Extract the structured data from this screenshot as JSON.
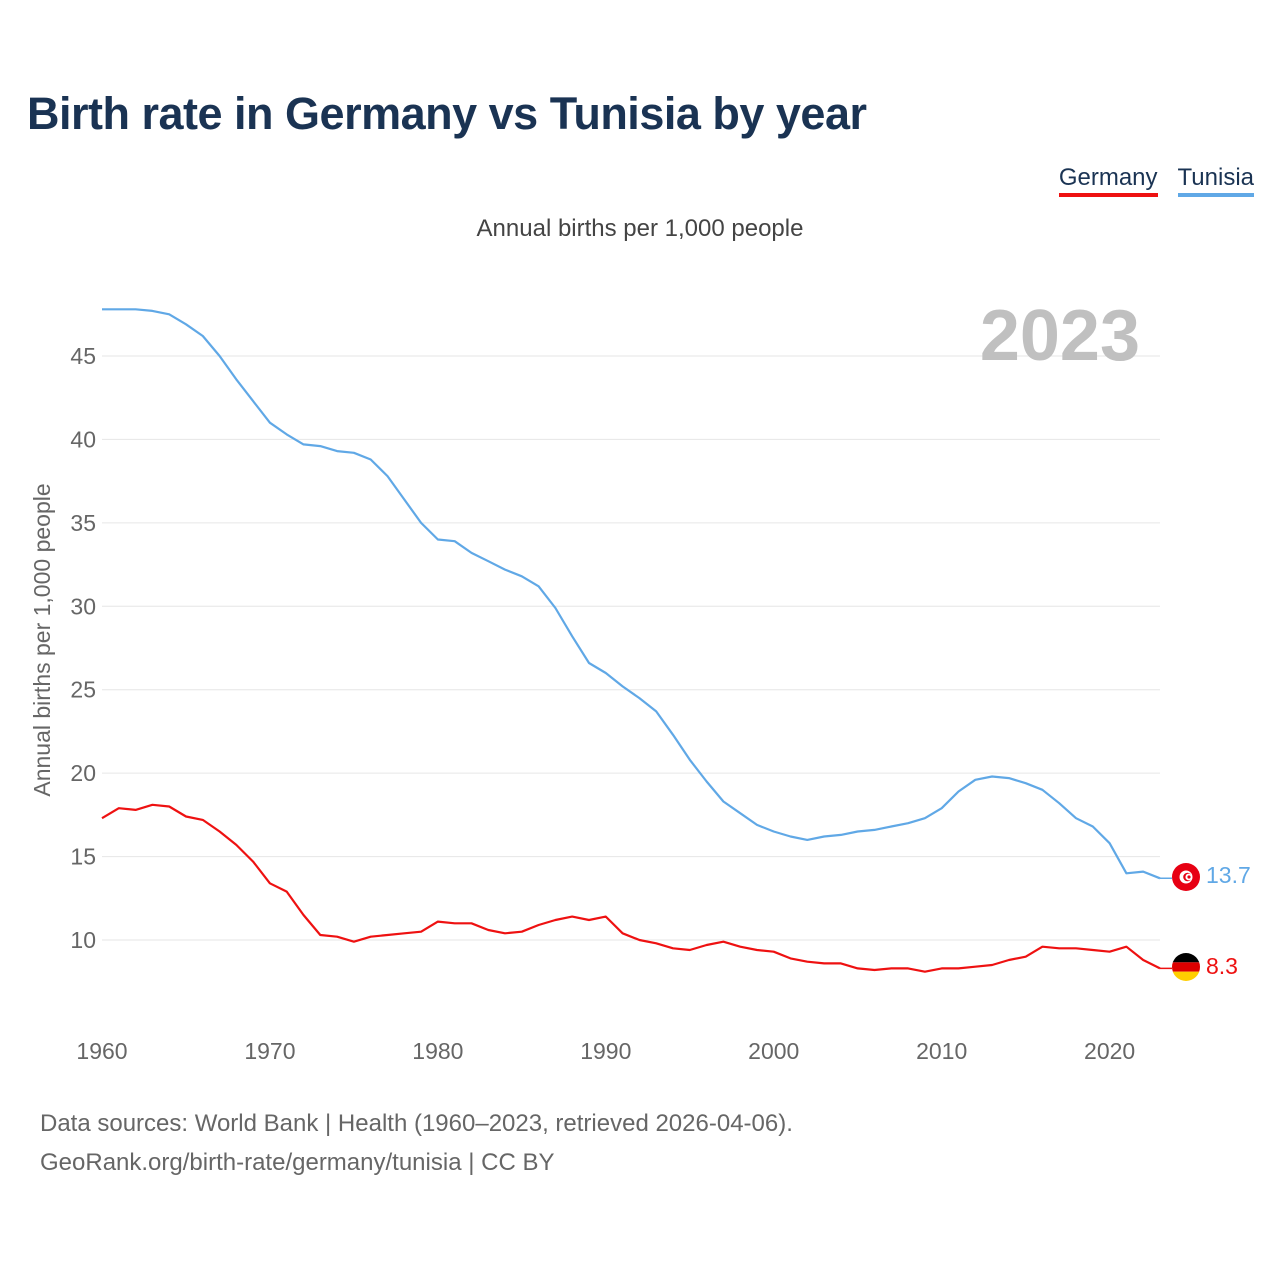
{
  "title": "Birth rate in Germany vs Tunisia by year",
  "subtitle": "Annual births per 1,000 people",
  "legend": [
    {
      "name": "Germany",
      "color": "#ee1111"
    },
    {
      "name": "Tunisia",
      "color": "#60a8e6"
    }
  ],
  "year_label": "2023",
  "footer": {
    "line1": "Data sources: World Bank | Health (1960–2023, retrieved 2026-04-06).",
    "line2": "GeoRank.org/birth-rate/germany/tunisia | CC BY"
  },
  "colors": {
    "title": "#1a3353",
    "germany": "#ee1111",
    "tunisia": "#60a8e6",
    "year": "#c0c0c0",
    "grid": "#e6e6e6"
  },
  "chart_data": {
    "type": "line",
    "title": "Birth rate in Germany vs Tunisia by year",
    "ylabel": "Annual births per 1,000 people",
    "xlabel": "",
    "xlim": [
      1960,
      2023
    ],
    "ylim": [
      6,
      48
    ],
    "xticks": [
      1960,
      1970,
      1980,
      1990,
      2000,
      2010,
      2020
    ],
    "yticks": [
      10,
      15,
      20,
      25,
      30,
      35,
      40,
      45
    ],
    "grid": true,
    "legend_position": "top-right",
    "x": [
      1960,
      1961,
      1962,
      1963,
      1964,
      1965,
      1966,
      1967,
      1968,
      1969,
      1970,
      1971,
      1972,
      1973,
      1974,
      1975,
      1976,
      1977,
      1978,
      1979,
      1980,
      1981,
      1982,
      1983,
      1984,
      1985,
      1986,
      1987,
      1988,
      1989,
      1990,
      1991,
      1992,
      1993,
      1994,
      1995,
      1996,
      1997,
      1998,
      1999,
      2000,
      2001,
      2002,
      2003,
      2004,
      2005,
      2006,
      2007,
      2008,
      2009,
      2010,
      2011,
      2012,
      2013,
      2014,
      2015,
      2016,
      2017,
      2018,
      2019,
      2020,
      2021,
      2022,
      2023
    ],
    "series": [
      {
        "name": "Germany",
        "end_label": "8.3",
        "values": [
          17.3,
          17.9,
          17.8,
          18.1,
          18.0,
          17.4,
          17.2,
          16.5,
          15.7,
          14.7,
          13.4,
          12.9,
          11.5,
          10.3,
          10.2,
          9.9,
          10.2,
          10.3,
          10.4,
          10.5,
          11.1,
          11.0,
          11.0,
          10.6,
          10.4,
          10.5,
          10.9,
          11.2,
          11.4,
          11.2,
          11.4,
          10.4,
          10.0,
          9.8,
          9.5,
          9.4,
          9.7,
          9.9,
          9.6,
          9.4,
          9.3,
          8.9,
          8.7,
          8.6,
          8.6,
          8.3,
          8.2,
          8.3,
          8.3,
          8.1,
          8.3,
          8.3,
          8.4,
          8.5,
          8.8,
          9.0,
          9.6,
          9.5,
          9.5,
          9.4,
          9.3,
          9.6,
          8.8,
          8.3
        ]
      },
      {
        "name": "Tunisia",
        "end_label": "13.7",
        "values": [
          47.8,
          47.8,
          47.8,
          47.7,
          47.5,
          46.9,
          46.2,
          45.0,
          43.6,
          42.3,
          41.0,
          40.3,
          39.7,
          39.6,
          39.3,
          39.2,
          38.8,
          37.8,
          36.4,
          35.0,
          34.0,
          33.9,
          33.2,
          32.7,
          32.2,
          31.8,
          31.2,
          29.9,
          28.2,
          26.6,
          26.0,
          25.2,
          24.5,
          23.7,
          22.3,
          20.8,
          19.5,
          18.3,
          17.6,
          16.9,
          16.5,
          16.2,
          16.0,
          16.2,
          16.3,
          16.5,
          16.6,
          16.8,
          17.0,
          17.3,
          17.9,
          18.9,
          19.6,
          19.8,
          19.7,
          19.4,
          19.0,
          18.2,
          17.3,
          16.8,
          15.8,
          14.0,
          14.1,
          13.7
        ]
      }
    ]
  }
}
